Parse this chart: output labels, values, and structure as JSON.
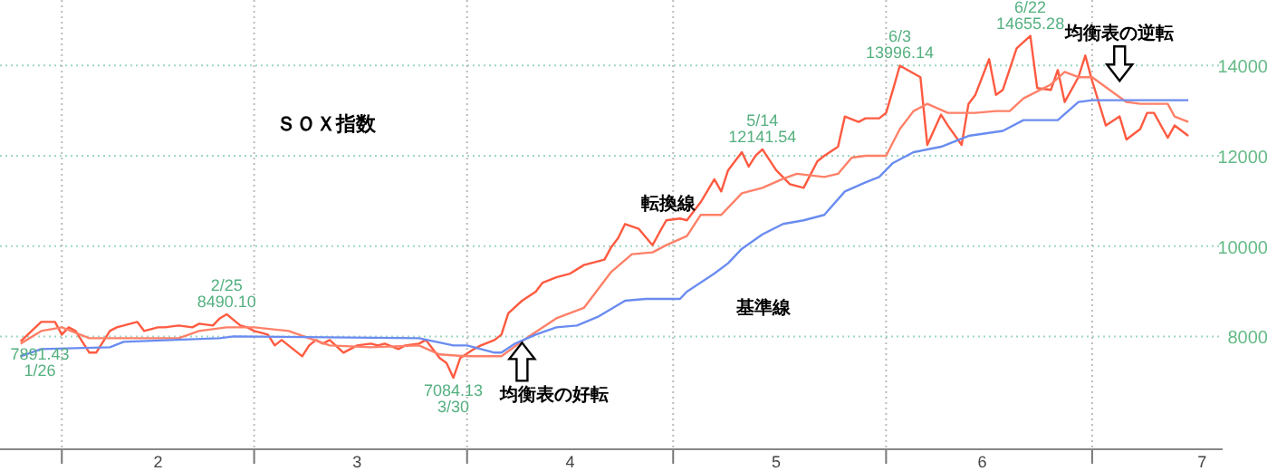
{
  "chart_data": {
    "type": "line",
    "title": "ＳＯＸ指数",
    "xlim": [
      "--01-23",
      "--07-20"
    ],
    "ylim": [
      5500,
      15450
    ],
    "xticks": [
      {
        "value": "--02-01",
        "label": null
      },
      {
        "value": "--02-15",
        "label": "2"
      },
      {
        "value": "--03-01",
        "label": null
      },
      {
        "value": "--03-16",
        "label": "3"
      },
      {
        "value": "--04-01",
        "label": null
      },
      {
        "value": "--04-16",
        "label": "4"
      },
      {
        "value": "--05-01",
        "label": null
      },
      {
        "value": "--05-16",
        "label": "5"
      },
      {
        "value": "--06-01",
        "label": null
      },
      {
        "value": "--06-15",
        "label": "6"
      },
      {
        "value": "--07-01",
        "label": null
      },
      {
        "value": "--07-17",
        "label": "7"
      }
    ],
    "yticks": [
      8000,
      10000,
      12000,
      14000
    ],
    "grid": true,
    "legend": false,
    "marker": "none",
    "line_style": "solid",
    "series": [
      {
        "color": "#ff5a40",
        "x": [
          "--01-26",
          "--01-29",
          "--01-31",
          "--02-01",
          "--02-02",
          "--02-03",
          "--02-05",
          "--02-06",
          "--02-08",
          "--02-09",
          "--02-10",
          "--02-12",
          "--02-13",
          "--02-15",
          "--02-16",
          "--02-18",
          "--02-20",
          "--02-21",
          "--02-23",
          "--02-24",
          "--02-25",
          "--02-27",
          "--02-28",
          "--03-01",
          "--03-03",
          "--03-04",
          "--03-05",
          "--03-06",
          "--03-08",
          "--03-09",
          "--03-10",
          "--03-11",
          "--03-12",
          "--03-14",
          "--03-15",
          "--03-16",
          "--03-18",
          "--03-19",
          "--03-20",
          "--03-22",
          "--03-23",
          "--03-25",
          "--03-26",
          "--03-27",
          "--03-28",
          "--03-29",
          "--03-30",
          "--03-31",
          "--04-02",
          "--04-03",
          "--04-05",
          "--04-06",
          "--04-07",
          "--04-09",
          "--04-11",
          "--04-12",
          "--04-14",
          "--04-16",
          "--04-18",
          "--04-19",
          "--04-21",
          "--04-22",
          "--04-23",
          "--04-24",
          "--04-26",
          "--04-28",
          "--04-29",
          "--04-30",
          "--05-02",
          "--05-03",
          "--05-05",
          "--05-07",
          "--05-08",
          "--05-09",
          "--05-11",
          "--05-12",
          "--05-13",
          "--05-14",
          "--05-16",
          "--05-18",
          "--05-20",
          "--05-22",
          "--05-23",
          "--05-25",
          "--05-26",
          "--05-28",
          "--05-29",
          "--05-31",
          "--06-01",
          "--06-02",
          "--06-03",
          "--06-06",
          "--06-07",
          "--06-09",
          "--06-10",
          "--06-12",
          "--06-13",
          "--06-14",
          "--06-16",
          "--06-17",
          "--06-18",
          "--06-20",
          "--06-22",
          "--06-23",
          "--06-25",
          "--06-26",
          "--06-27",
          "--06-29",
          "--06-30",
          "--07-01",
          "--07-03",
          "--07-05",
          "--07-06",
          "--07-08",
          "--07-09",
          "--07-10",
          "--07-12",
          "--07-13",
          "--07-15"
        ],
        "values": [
          7891.43,
          8320,
          8320,
          8040,
          8200,
          8120,
          7640,
          7640,
          8120,
          8200,
          8240,
          8320,
          8120,
          8200,
          8200,
          8240,
          8200,
          8280,
          8240,
          8400,
          8490.1,
          8240,
          8200,
          8120,
          8040,
          7800,
          7920,
          7800,
          7560,
          7800,
          7920,
          7840,
          7920,
          7640,
          7720,
          7800,
          7840,
          7800,
          7840,
          7720,
          7800,
          7840,
          7920,
          7720,
          7520,
          7410,
          7084.13,
          7520,
          7720,
          7800,
          7920,
          8040,
          8510,
          8790,
          8990,
          9190,
          9310,
          9390,
          9580,
          9620,
          9700,
          9980,
          10180,
          10490,
          10380,
          10020,
          10300,
          10570,
          10610,
          10570,
          10970,
          11480,
          11210,
          11680,
          12080,
          11760,
          12000,
          12141.54,
          11680,
          11370,
          11290,
          11880,
          12000,
          12200,
          12870,
          12750,
          12830,
          12830,
          12950,
          13460,
          13996.14,
          13740,
          12240,
          12910,
          12670,
          12240,
          13150,
          13350,
          14140,
          13350,
          13460,
          14380,
          14655.28,
          13500,
          13460,
          13900,
          13190,
          13740,
          14220,
          13660,
          12670,
          12870,
          12360,
          12590,
          12950,
          12950,
          12400,
          12670,
          12440
        ]
      },
      {
        "name": "転換線",
        "color": "#ff8068",
        "x": [
          "--01-26",
          "--01-29",
          "--02-01",
          "--02-05",
          "--02-10",
          "--02-18",
          "--02-21",
          "--02-25",
          "--03-01",
          "--03-06",
          "--03-12",
          "--03-18",
          "--03-25",
          "--03-28",
          "--04-01",
          "--04-06",
          "--04-10",
          "--04-14",
          "--04-18",
          "--04-20",
          "--04-22",
          "--04-25",
          "--04-28",
          "--04-30",
          "--05-03",
          "--05-05",
          "--05-08",
          "--05-11",
          "--05-14",
          "--05-17",
          "--05-19",
          "--05-23",
          "--05-25",
          "--05-27",
          "--05-29",
          "--06-01",
          "--06-03",
          "--06-05",
          "--06-07",
          "--06-10",
          "--06-14",
          "--06-17",
          "--06-19",
          "--06-21",
          "--06-25",
          "--06-27",
          "--06-29",
          "--07-01",
          "--07-06",
          "--07-08",
          "--07-12",
          "--07-13",
          "--07-15"
        ],
        "values": [
          7840,
          8120,
          8200,
          7960,
          7960,
          7960,
          8120,
          8200,
          8200,
          8120,
          7800,
          7760,
          7800,
          7600,
          7560,
          7560,
          8000,
          8400,
          8630,
          9030,
          9430,
          9820,
          9860,
          10020,
          10220,
          10690,
          10690,
          11170,
          11290,
          11490,
          11600,
          11530,
          11600,
          11960,
          12000,
          12000,
          12590,
          12990,
          13150,
          12950,
          12950,
          12990,
          12990,
          13270,
          13580,
          13860,
          13740,
          13740,
          13190,
          13150,
          13150,
          12870,
          12750
        ]
      },
      {
        "name": "基準線",
        "color": "#6a8cf0",
        "x": [
          "--01-26",
          "--01-29",
          "--02-08",
          "--02-10",
          "--02-24",
          "--02-26",
          "--03-25",
          "--03-30",
          "--04-01",
          "--04-05",
          "--04-06",
          "--04-08",
          "--04-11",
          "--04-14",
          "--04-17",
          "--04-20",
          "--04-24",
          "--04-27",
          "--05-02",
          "--05-03",
          "--05-07",
          "--05-09",
          "--05-11",
          "--05-14",
          "--05-17",
          "--05-20",
          "--05-23",
          "--05-26",
          "--05-29",
          "--05-31",
          "--06-02",
          "--06-05",
          "--06-09",
          "--06-13",
          "--06-18",
          "--06-21",
          "--06-26",
          "--06-29",
          "--07-01",
          "--07-15"
        ],
        "values": [
          7560,
          7720,
          7760,
          7880,
          7960,
          8000,
          7960,
          7800,
          7800,
          7640,
          7640,
          7840,
          8040,
          8200,
          8240,
          8430,
          8790,
          8830,
          8830,
          8990,
          9390,
          9620,
          9940,
          10260,
          10490,
          10570,
          10690,
          11210,
          11410,
          11530,
          11840,
          12080,
          12200,
          12440,
          12550,
          12790,
          12790,
          13190,
          13230,
          13230
        ]
      }
    ],
    "annotations": [
      {
        "text": "7891.43\n1/26",
        "x": "--01-26",
        "y": 7891.43
      },
      {
        "text": "2/25\n8490.10",
        "x": "--02-25",
        "y": 8490.1
      },
      {
        "text": "7084.13\n3/30",
        "x": "--03-30",
        "y": 7084.13
      },
      {
        "text": "5/14\n12141.54",
        "x": "--05-14",
        "y": 12141.54
      },
      {
        "text": "6/3\n13996.14",
        "x": "--06-03",
        "y": 13996.14
      },
      {
        "text": "6/22\n14655.28",
        "x": "--06-22",
        "y": 14655.28
      },
      {
        "text": "均衡表の好転",
        "x": "--04-09",
        "y": 7900
      },
      {
        "text": "均衡表の逆転",
        "x": "--07-05",
        "y": 13500
      }
    ]
  }
}
